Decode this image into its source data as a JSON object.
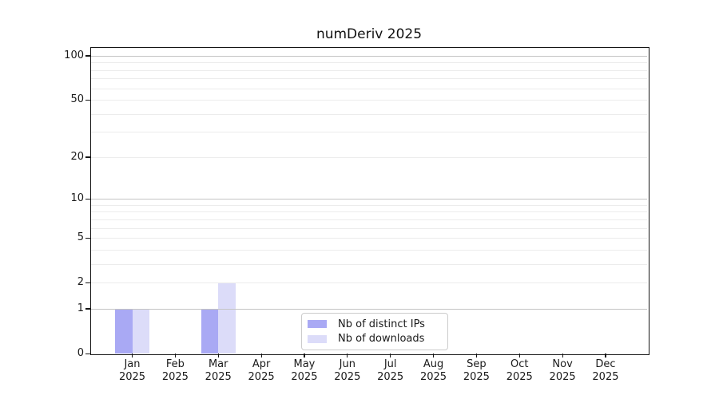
{
  "title": "numDeriv 2025",
  "chart_data": {
    "type": "bar",
    "title": "numDeriv 2025",
    "x_categories": [
      "Jan",
      "Feb",
      "Mar",
      "Apr",
      "May",
      "Jun",
      "Jul",
      "Aug",
      "Sep",
      "Oct",
      "Nov",
      "Dec"
    ],
    "x_year": "2025",
    "series": [
      {
        "name": "Nb of distinct IPs",
        "color": "#a9a9f4",
        "values": [
          1,
          0,
          1,
          0,
          0,
          0,
          0,
          0,
          0,
          0,
          0,
          0
        ]
      },
      {
        "name": "Nb of downloads",
        "color": "#dcdcf9",
        "values": [
          1,
          0,
          2,
          0,
          0,
          0,
          0,
          0,
          0,
          0,
          0,
          0
        ]
      }
    ],
    "y_axis": {
      "scale": "log10(1+x)",
      "tick_values": [
        0,
        1,
        2,
        5,
        10,
        20,
        50,
        100
      ],
      "top_value": 115,
      "major_grid_values": [
        1,
        10,
        100
      ],
      "minor_grid_values": [
        2,
        3,
        4,
        5,
        6,
        7,
        8,
        9,
        20,
        30,
        40,
        50,
        60,
        70,
        80,
        90
      ]
    },
    "grid": "horizontal",
    "legend_position": "inside-bottom-center"
  },
  "colors": {
    "major_grid": "#c4c4c4",
    "minor_grid": "#ececec",
    "spine": "#151515",
    "text": "#1a1a1a",
    "legend_border": "#cccccc",
    "background": "#ffffff"
  }
}
